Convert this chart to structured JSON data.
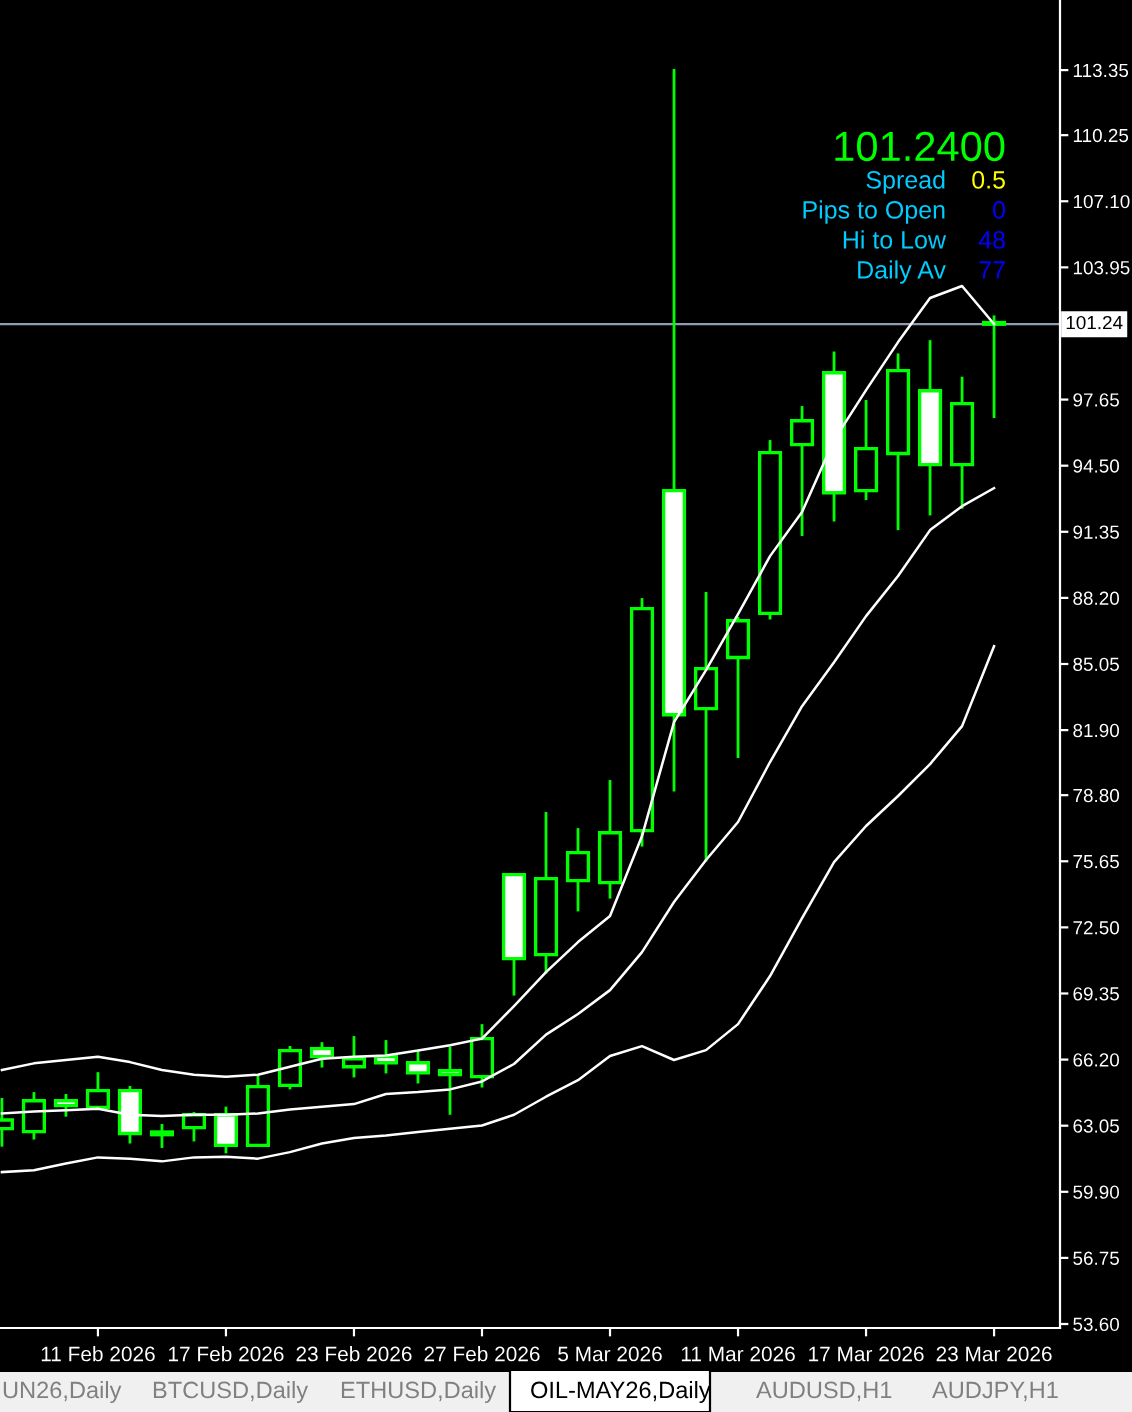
{
  "chart_data": {
    "type": "candlestick",
    "categories": [
      null,
      null,
      null,
      "11 Feb 2026",
      null,
      null,
      null,
      "17 Feb 2026",
      null,
      null,
      null,
      "23 Feb 2026",
      null,
      null,
      null,
      "27 Feb 2026",
      null,
      null,
      null,
      "5 Mar 2026",
      null,
      null,
      null,
      "11 Mar 2026",
      null,
      null,
      null,
      "17 Mar 2026",
      null,
      null,
      null,
      "23 Mar 2026"
    ],
    "color": "#00ff00",
    "ohlc": [
      [
        62.91,
        64.37,
        62.05,
        63.32
      ],
      [
        62.77,
        64.65,
        62.39,
        64.24
      ],
      [
        64.24,
        64.56,
        63.48,
        64.01
      ],
      [
        63.92,
        65.6,
        63.92,
        64.72
      ],
      [
        64.72,
        64.94,
        62.2,
        62.68
      ],
      [
        62.75,
        63.13,
        61.99,
        62.62
      ],
      [
        62.96,
        63.7,
        62.3,
        63.57
      ],
      [
        63.57,
        63.96,
        61.73,
        62.11
      ],
      [
        62.11,
        65.42,
        62.05,
        64.91
      ],
      [
        64.97,
        66.85,
        64.78,
        66.63
      ],
      [
        66.72,
        67.03,
        65.82,
        66.34
      ],
      [
        65.86,
        67.32,
        65.35,
        66.24
      ],
      [
        66.34,
        67.13,
        65.54,
        66.05
      ],
      [
        66.05,
        66.63,
        65.06,
        65.57
      ],
      [
        65.67,
        66.82,
        63.57,
        65.48
      ],
      [
        65.39,
        67.89,
        64.87,
        67.2
      ],
      [
        75.01,
        75.01,
        69.25,
        71.01
      ],
      [
        71.2,
        78.0,
        70.3,
        74.82
      ],
      [
        74.73,
        77.23,
        73.26,
        76.06
      ],
      [
        74.63,
        79.52,
        73.87,
        77.01
      ],
      [
        77.11,
        88.19,
        76.35,
        87.69
      ],
      [
        93.31,
        113.4,
        78.98,
        82.63
      ],
      [
        82.92,
        88.48,
        75.64,
        84.83
      ],
      [
        85.36,
        87.3,
        80.57,
        87.11
      ],
      [
        87.46,
        95.72,
        87.17,
        95.12
      ],
      [
        95.5,
        97.34,
        91.15,
        96.64
      ],
      [
        98.93,
        99.94,
        91.84,
        93.21
      ],
      [
        93.31,
        97.63,
        92.86,
        95.31
      ],
      [
        95.08,
        99.85,
        91.43,
        99.03
      ],
      [
        98.07,
        100.48,
        92.13,
        94.55
      ],
      [
        94.55,
        98.74,
        92.45,
        97.46
      ],
      [
        101.24,
        101.66,
        96.77,
        101.24
      ]
    ],
    "series": [
      {
        "type": "line",
        "color": "#ffffff",
        "values": [
          65.7,
          66.02,
          66.18,
          66.34,
          66.08,
          65.7,
          65.48,
          65.38,
          65.48,
          65.86,
          66.24,
          66.34,
          66.4,
          66.63,
          66.88,
          67.2,
          68.75,
          70.37,
          71.8,
          73.04,
          76.85,
          82.28,
          84.76,
          87.43,
          90.19,
          92.29,
          95.72,
          98.1,
          100.39,
          102.49,
          103.06,
          101.25
        ]
      },
      {
        "type": "line",
        "color": "#ffffff",
        "values": [
          63.63,
          63.73,
          63.79,
          63.86,
          63.57,
          63.51,
          63.57,
          63.57,
          63.63,
          63.82,
          63.95,
          64.08,
          64.56,
          64.65,
          64.78,
          65.16,
          65.99,
          67.39,
          68.37,
          69.51,
          71.32,
          73.71,
          75.71,
          77.52,
          80.38,
          83.04,
          85.13,
          87.33,
          89.24,
          91.43,
          92.57,
          93.43
        ]
      },
      {
        "type": "line",
        "color": "#ffffff",
        "values": [
          60.84,
          60.93,
          61.25,
          61.54,
          61.48,
          61.35,
          61.54,
          61.57,
          61.48,
          61.79,
          62.2,
          62.46,
          62.58,
          62.75,
          62.91,
          63.06,
          63.57,
          64.43,
          65.22,
          66.37,
          66.84,
          66.18,
          66.65,
          67.89,
          70.18,
          72.94,
          75.61,
          77.33,
          78.76,
          80.28,
          82.09,
          85.9
        ]
      }
    ],
    "ylim": [
      53.41,
      116.69
    ],
    "yticks": [
      113.35,
      110.25,
      {
        "value": 107.1,
        "label": "107.10"
      },
      103.95,
      97.65,
      {
        "value": 94.5,
        "label": "94.50"
      },
      91.35,
      {
        "value": 88.2,
        "label": "88.20"
      },
      85.05,
      {
        "value": 81.9,
        "label": "81.90"
      },
      {
        "value": 78.8,
        "label": "78.80"
      },
      75.65,
      {
        "value": 72.5,
        "label": "72.50"
      },
      69.35,
      {
        "value": 66.2,
        "label": "66.20"
      },
      63.05,
      {
        "value": 59.9,
        "label": "59.90"
      },
      56.75,
      {
        "value": 53.6,
        "label": "53.60"
      }
    ],
    "ref_lines": [
      {
        "axis": "y",
        "value": 101.24,
        "label": "101.24",
        "color": "#8c9cb4"
      }
    ],
    "grid": false,
    "legend": false,
    "annotations": [
      "101.2400",
      "Spread",
      "0.5",
      "Pips to Open",
      "0",
      "Hi to Low",
      "48",
      "Daily Av",
      "77",
      "UN26,Daily",
      "BTCUSD,Daily",
      "ETHUSD,Daily",
      "OIL-MAY26,Daily",
      "AUDUSD,H1",
      "AUDJPY,H1"
    ]
  }
}
